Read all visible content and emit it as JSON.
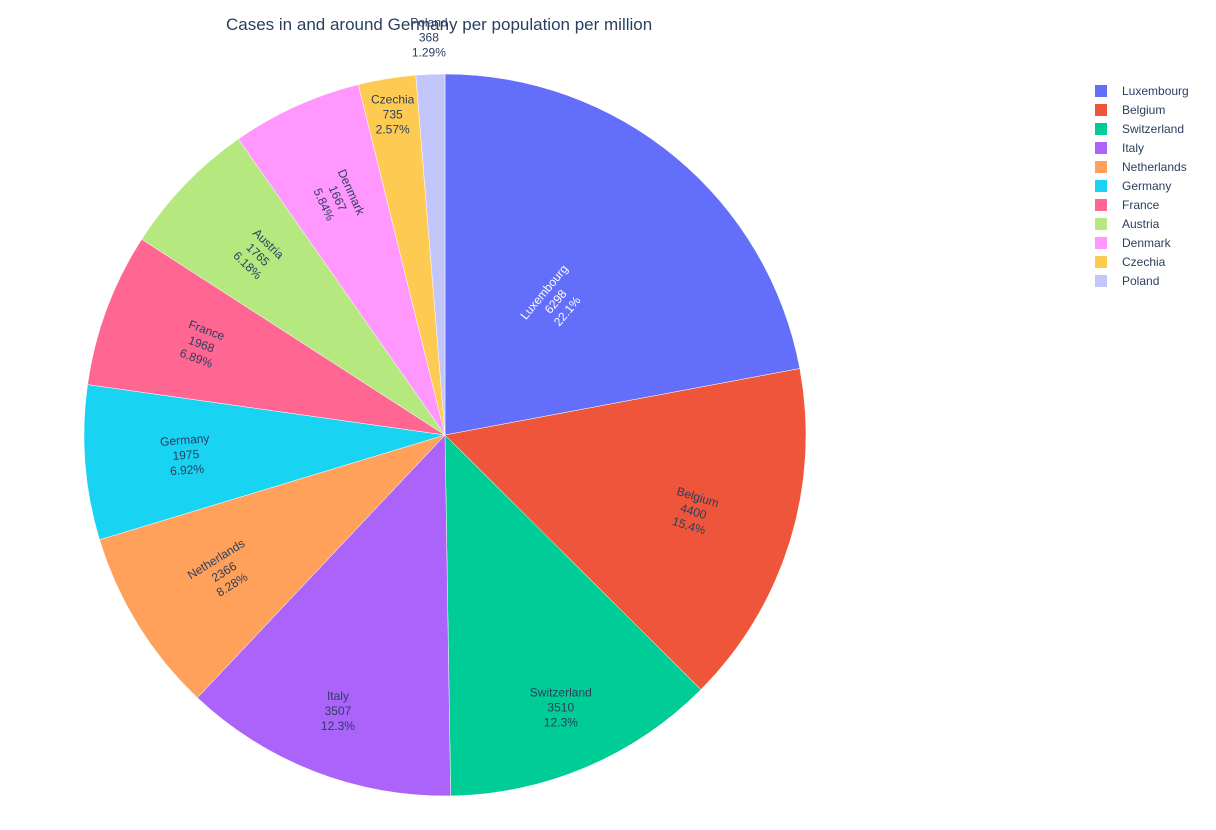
{
  "chart_data": {
    "type": "pie",
    "title": "Cases in and around Germany per population per million",
    "legend_position": "top-right",
    "direction": "clockwise",
    "slices": [
      {
        "label": "Luxembourg",
        "value": 6298,
        "percent": "22.1%",
        "color": "#636efa",
        "text_color": "#ffffff"
      },
      {
        "label": "Belgium",
        "value": 4400,
        "percent": "15.4%",
        "color": "#EF553B",
        "text_color": "#2a3f5f"
      },
      {
        "label": "Switzerland",
        "value": 3510,
        "percent": "12.3%",
        "color": "#00cc96",
        "text_color": "#2a3f5f"
      },
      {
        "label": "Italy",
        "value": 3507,
        "percent": "12.3%",
        "color": "#ab63fa",
        "text_color": "#2a3f5f"
      },
      {
        "label": "Netherlands",
        "value": 2366,
        "percent": "8.28%",
        "color": "#FFA15A",
        "text_color": "#2a3f5f"
      },
      {
        "label": "Germany",
        "value": 1975,
        "percent": "6.92%",
        "color": "#19d3f3",
        "text_color": "#2a3f5f"
      },
      {
        "label": "France",
        "value": 1968,
        "percent": "6.89%",
        "color": "#FF6692",
        "text_color": "#2a3f5f"
      },
      {
        "label": "Austria",
        "value": 1765,
        "percent": "6.18%",
        "color": "#B6E880",
        "text_color": "#2a3f5f"
      },
      {
        "label": "Denmark",
        "value": 1667,
        "percent": "5.84%",
        "color": "#FF97FF",
        "text_color": "#2a3f5f"
      },
      {
        "label": "Czechia",
        "value": 735,
        "percent": "2.57%",
        "color": "#FECB52",
        "text_color": "#2a3f5f"
      },
      {
        "label": "Poland",
        "value": 368,
        "percent": "1.29%",
        "color": "#c3c6fb",
        "text_color": "#2a3f5f"
      }
    ]
  }
}
